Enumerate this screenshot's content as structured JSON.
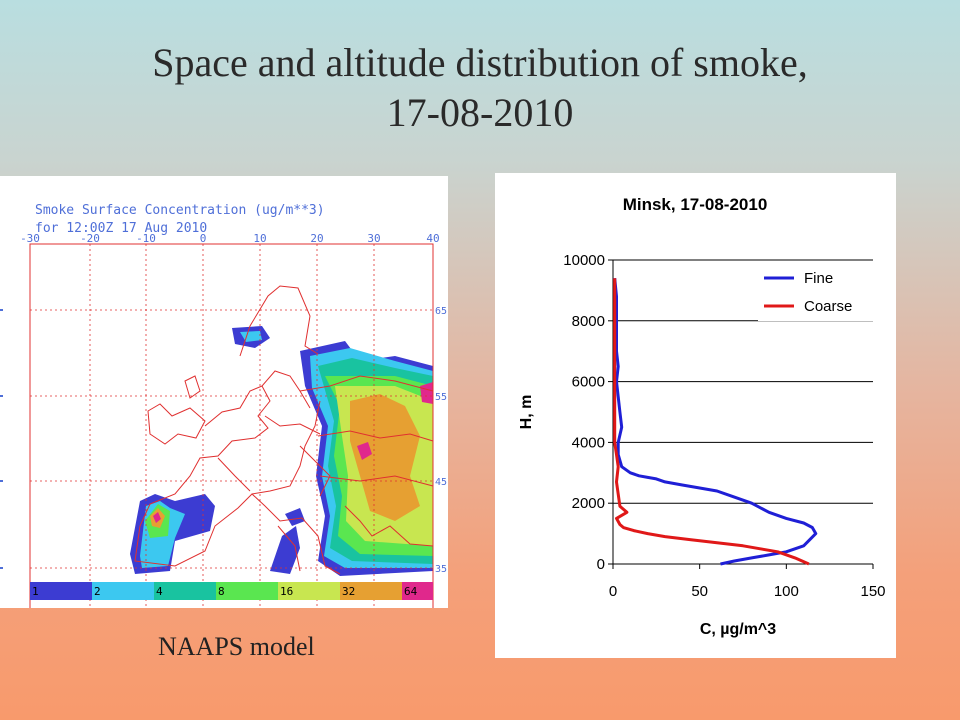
{
  "slide": {
    "title_line1": "Space and altitude distribution of smoke,",
    "title_line2": "17-08-2010",
    "caption": "NAAPS model"
  },
  "map": {
    "title_line1": "Smoke Surface Concentration (ug/m**3)",
    "title_line2": "for 12:00Z 17 Aug 2010",
    "longitude_labels": [
      "-30",
      "-20",
      "-10",
      "0",
      "10",
      "20",
      "30",
      "40"
    ],
    "latitude_labels": [
      "65",
      "55",
      "45",
      "35"
    ],
    "colorbar": [
      {
        "label": "1",
        "color": "#3c3cd2"
      },
      {
        "label": "2",
        "color": "#3cc8f0"
      },
      {
        "label": "4",
        "color": "#19c3a0"
      },
      {
        "label": "8",
        "color": "#5ae650"
      },
      {
        "label": "16",
        "color": "#c8e650"
      },
      {
        "label": "32",
        "color": "#e6a032"
      },
      {
        "label": "64",
        "color": "#e0288c"
      }
    ],
    "line_color": "#e03030"
  },
  "chart_data": {
    "type": "line",
    "title": "Minsk, 17-08-2010",
    "xlabel": "C, µg/m^3",
    "ylabel": "H, m",
    "xlim": [
      0,
      150
    ],
    "ylim": [
      0,
      10000
    ],
    "xticks": [
      "0",
      "50",
      "100",
      "150"
    ],
    "yticks": [
      "0",
      "2000",
      "4000",
      "6000",
      "8000",
      "10000"
    ],
    "grid": "horizontal",
    "legend_position": "top-right",
    "series": [
      {
        "name": "Fine",
        "color": "#1f1fd6",
        "x": [
          62,
          70,
          80,
          90,
          100,
          110,
          117,
          115,
          110,
          100,
          90,
          80,
          70,
          60,
          50,
          40,
          30,
          25,
          20,
          15,
          10,
          5,
          3,
          3,
          5,
          4,
          3,
          2,
          3,
          2,
          2,
          2,
          2,
          1
        ],
        "y": [
          0,
          100,
          200,
          300,
          400,
          600,
          1000,
          1200,
          1350,
          1500,
          1700,
          2000,
          2200,
          2400,
          2500,
          2600,
          2700,
          2800,
          2850,
          2900,
          3000,
          3200,
          3600,
          4000,
          4500,
          5000,
          5500,
          6000,
          6500,
          7000,
          7500,
          8000,
          8800,
          9400
        ]
      },
      {
        "name": "Coarse",
        "color": "#e01818",
        "x": [
          113,
          105,
          95,
          85,
          75,
          60,
          45,
          30,
          20,
          12,
          6,
          4,
          2,
          8,
          4,
          3,
          2,
          3,
          2,
          1,
          1,
          1,
          1,
          1,
          1,
          1
        ],
        "y": [
          0,
          200,
          400,
          500,
          600,
          700,
          800,
          900,
          1000,
          1100,
          1200,
          1300,
          1500,
          1700,
          1900,
          2300,
          2700,
          3200,
          3600,
          4000,
          5000,
          6000,
          7000,
          8000,
          9000,
          9400
        ]
      }
    ]
  }
}
